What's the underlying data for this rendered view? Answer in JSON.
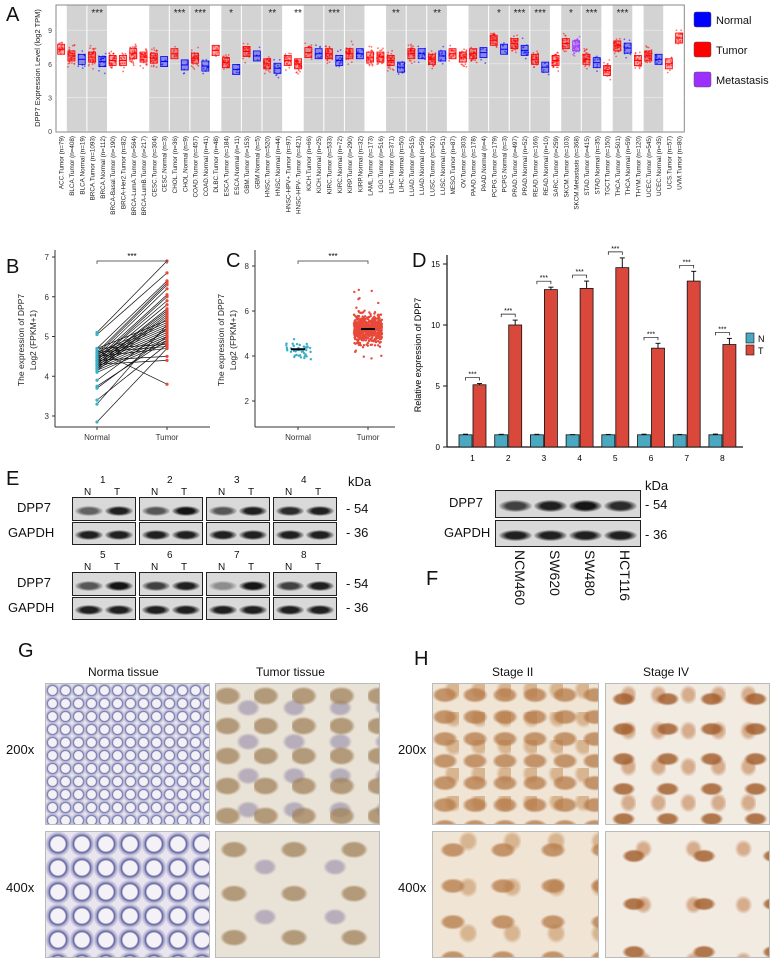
{
  "panel_letters": {
    "A": "A",
    "B": "B",
    "C": "C",
    "D": "D",
    "E": "E",
    "F": "F",
    "G": "G",
    "H": "H"
  },
  "colors": {
    "normal": "#0000ff",
    "tumor": "#ff0000",
    "metastasis": "#9b30ff",
    "paired_normal": "#3ab0c8",
    "paired_tumor": "#e8493a",
    "bar_n": "#4aa8c0",
    "bar_t": "#d9483a",
    "shade": "#d3d3d3"
  },
  "chart_data": [
    {
      "id": "A",
      "type": "box",
      "ylabel": "DPP7 Expression Level (log2 TPM)",
      "ylim": [
        0,
        11
      ],
      "yticks": [
        "0",
        "3",
        "6",
        "9"
      ],
      "legend": {
        "placement": "right",
        "entries": [
          "Normal",
          "Tumor",
          "Metastasis"
        ]
      },
      "categories": [
        "ACC.Tumor (n=79)",
        "BLCA.Tumor (n=408)",
        "BLCA.Normal (n=19)",
        "BRCA.Tumor (n=1093)",
        "BRCA.Normal (n=112)",
        "BRCA-Basal.Tumor (n=190)",
        "BRCA-Her2.Tumor (n=82)",
        "BRCA-LumA.Tumor (n=564)",
        "BRCA-LumB.Tumor (n=217)",
        "CESC.Tumor (n=304)",
        "CESC.Normal (n=3)",
        "CHOL.Tumor (n=36)",
        "CHOL.Normal (n=9)",
        "COAD.Tumor (n=457)",
        "COAD.Normal (n=41)",
        "DLBC.Tumor (n=48)",
        "ESCA.Tumor (n=184)",
        "ESCA.Normal (n=11)",
        "GBM.Tumor (n=153)",
        "GBM.Normal (n=5)",
        "HNSC.Tumor (n=520)",
        "HNSC.Normal (n=44)",
        "HNSC-HPV+.Tumor (n=97)",
        "HNSC-HPV-.Tumor (n=421)",
        "KICH.Tumor (n=66)",
        "KICH.Normal (n=25)",
        "KIRC.Tumor (n=533)",
        "KIRC.Normal (n=72)",
        "KIRP.Tumor (n=290)",
        "KIRP.Normal (n=32)",
        "LAML.Tumor (n=173)",
        "LGG.Tumor (n=516)",
        "LIHC.Tumor (n=371)",
        "LIHC.Normal (n=50)",
        "LUAD.Tumor (n=515)",
        "LUAD.Normal (n=59)",
        "LUSC.Tumor (n=501)",
        "LUSC.Normal (n=51)",
        "MESO.Tumor (n=87)",
        "OV.Tumor (n=303)",
        "PAAD.Tumor (n=178)",
        "PAAD.Normal (n=4)",
        "PCPG.Tumor (n=179)",
        "PCPG.Normal (n=3)",
        "PRAD.Tumor (n=497)",
        "PRAD.Normal (n=52)",
        "READ.Tumor (n=166)",
        "READ.Normal (n=10)",
        "SARC.Tumor (n=259)",
        "SKCM.Tumor (n=103)",
        "SKCM.Metastasis (n=368)",
        "STAD.Tumor (n=415)",
        "STAD.Normal (n=35)",
        "TGCT.Tumor (n=150)",
        "THCA.Tumor (n=501)",
        "THCA.Normal (n=59)",
        "THYM.Tumor (n=120)",
        "UCEC.Tumor (n=545)",
        "UCEC.Normal (n=35)",
        "UCS.Tumor (n=57)",
        "UVM.Tumor (n=80)"
      ],
      "medians": [
        7.3,
        6.7,
        6.4,
        6.6,
        6.2,
        6.3,
        6.3,
        6.9,
        6.6,
        6.5,
        6.2,
        6.9,
        5.9,
        6.5,
        5.8,
        7.2,
        6.1,
        5.5,
        7.1,
        6.7,
        6.0,
        5.6,
        6.3,
        6.0,
        7.0,
        6.9,
        6.9,
        6.3,
        6.9,
        6.9,
        6.6,
        6.6,
        6.3,
        5.7,
        6.9,
        6.9,
        6.4,
        6.7,
        6.9,
        6.6,
        6.9,
        7.0,
        8.1,
        7.3,
        7.8,
        7.2,
        6.4,
        5.7,
        6.3,
        7.8,
        7.6,
        6.4,
        6.1,
        5.4,
        7.6,
        7.4,
        6.3,
        6.7,
        6.4,
        6.0,
        8.3
      ],
      "significance": {
        "BRCA": "***",
        "CHOL": "***",
        "COAD": "***",
        "ESCA": "*",
        "HNSC": "**",
        "HNSC-HPV-": "**",
        "KIRC": "***",
        "LIHC": "**",
        "LUSC": "**",
        "PCPG": "*",
        "PRAD": "***",
        "READ": "***",
        "SKCM": "*",
        "STAD": "***",
        "THCA": "***"
      }
    },
    {
      "id": "B",
      "type": "paired-line",
      "ylabel_line1": "The expression of DPP7",
      "ylabel_line2": "Log2 (FPKM+1)",
      "categories": [
        "Normal",
        "Tumor"
      ],
      "ylim": [
        2.8,
        7.05
      ],
      "yticks": [
        "3",
        "4",
        "5",
        "6",
        "7"
      ],
      "significance": "***",
      "pairs": [
        [
          5.1,
          6.9
        ],
        [
          5.05,
          6.6
        ],
        [
          4.7,
          6.4
        ],
        [
          4.6,
          6.35
        ],
        [
          4.55,
          6.3
        ],
        [
          4.5,
          6.2
        ],
        [
          4.45,
          6.05
        ],
        [
          4.4,
          6.0
        ],
        [
          4.4,
          5.9
        ],
        [
          4.35,
          5.8
        ],
        [
          4.3,
          5.7
        ],
        [
          4.3,
          5.65
        ],
        [
          4.25,
          5.6
        ],
        [
          4.2,
          5.55
        ],
        [
          4.2,
          5.5
        ],
        [
          4.15,
          5.45
        ],
        [
          4.7,
          5.4
        ],
        [
          4.6,
          5.35
        ],
        [
          4.55,
          5.3
        ],
        [
          4.5,
          5.25
        ],
        [
          4.45,
          5.2
        ],
        [
          4.4,
          5.15
        ],
        [
          4.35,
          5.1
        ],
        [
          4.3,
          5.05
        ],
        [
          4.25,
          5.0
        ],
        [
          4.2,
          4.95
        ],
        [
          4.15,
          4.9
        ],
        [
          4.1,
          4.85
        ],
        [
          4.7,
          4.8
        ],
        [
          4.6,
          4.75
        ],
        [
          4.5,
          4.7
        ],
        [
          4.4,
          4.5
        ],
        [
          4.3,
          4.4
        ],
        [
          4.65,
          3.8
        ],
        [
          3.9,
          5.2
        ],
        [
          3.75,
          4.9
        ],
        [
          3.7,
          5.0
        ],
        [
          3.4,
          4.8
        ],
        [
          3.3,
          5.3
        ],
        [
          2.85,
          4.7
        ]
      ]
    },
    {
      "id": "C",
      "type": "scatter",
      "ylabel_line1": "The expression of DPP7",
      "ylabel_line2": "Log2 (FPKM+1)",
      "categories": [
        "Normal",
        "Tumor"
      ],
      "ylim": [
        1,
        8.5
      ],
      "yticks": [
        "2",
        "4",
        "6",
        "8"
      ],
      "significance": "***",
      "means": [
        4.3,
        5.2
      ],
      "n": [
        51,
        600
      ]
    },
    {
      "id": "D",
      "type": "bar",
      "ylabel": "Relative expression of DPP7",
      "categories": [
        "1",
        "2",
        "3",
        "4",
        "5",
        "6",
        "7",
        "8"
      ],
      "ylim": [
        0,
        16
      ],
      "yticks": [
        "0",
        "5",
        "10",
        "15"
      ],
      "legend": {
        "placement": "right",
        "entries": [
          "N",
          "T"
        ]
      },
      "series": [
        {
          "name": "N",
          "values": [
            1,
            1,
            1,
            1,
            1,
            1,
            1,
            1
          ],
          "errors": [
            0.05,
            0.04,
            0.04,
            0.02,
            0.03,
            0.05,
            0.03,
            0.06
          ]
        },
        {
          "name": "T",
          "values": [
            5.1,
            10.0,
            12.9,
            13.0,
            14.7,
            8.1,
            13.6,
            8.4
          ],
          "errors": [
            0.1,
            0.4,
            0.2,
            0.6,
            0.8,
            0.4,
            0.8,
            0.5
          ]
        }
      ],
      "significance": [
        "***",
        "***",
        "***",
        "***",
        "***",
        "***",
        "***",
        "***"
      ]
    }
  ],
  "panelE": {
    "upper_lanes": [
      "1",
      "2",
      "3",
      "4"
    ],
    "lower_lanes": [
      "5",
      "6",
      "7",
      "8"
    ],
    "nt": [
      "N",
      "T"
    ],
    "proteins": [
      "DPP7",
      "GAPDH"
    ],
    "kda": "kDa",
    "mw": [
      "- 54",
      "- 36"
    ]
  },
  "panelF": {
    "proteins": [
      "DPP7",
      "GAPDH"
    ],
    "kda": "kDa",
    "mw": [
      "- 54",
      "- 36"
    ],
    "cell_lines": [
      "NCM460",
      "SW620",
      "SW480",
      "HCT116"
    ]
  },
  "panelG": {
    "titles": [
      "Norma tissue",
      "Tumor tissue"
    ],
    "magnifications": [
      "200x",
      "400x"
    ]
  },
  "panelH": {
    "titles": [
      "Stage II",
      "Stage IV"
    ],
    "magnifications": [
      "200x",
      "400x"
    ]
  }
}
